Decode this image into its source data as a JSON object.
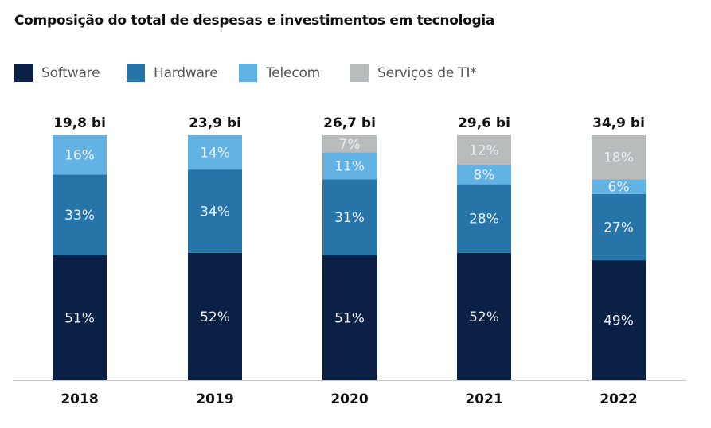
{
  "chart_data": {
    "type": "bar",
    "stacked": true,
    "title": "Composição do total de despesas e investimentos em tecnologia",
    "categories": [
      "2018",
      "2019",
      "2020",
      "2021",
      "2022"
    ],
    "totals": [
      "19,8 bi",
      "23,9 bi",
      "26,7 bi",
      "29,6 bi",
      "34,9 bi"
    ],
    "series": [
      {
        "name": "Software",
        "color": "#0b2045",
        "values": [
          51,
          52,
          51,
          52,
          49
        ]
      },
      {
        "name": "Hardware",
        "color": "#2774a8",
        "values": [
          33,
          34,
          31,
          28,
          27
        ]
      },
      {
        "name": "Telecom",
        "color": "#62b3e4",
        "values": [
          16,
          14,
          11,
          8,
          6
        ]
      },
      {
        "name": "Serviços de TI*",
        "color": "#b9bcbd",
        "values": [
          0,
          0,
          7,
          12,
          18
        ]
      }
    ],
    "value_suffix": "%",
    "legend_position": "top-left",
    "grid": false
  }
}
